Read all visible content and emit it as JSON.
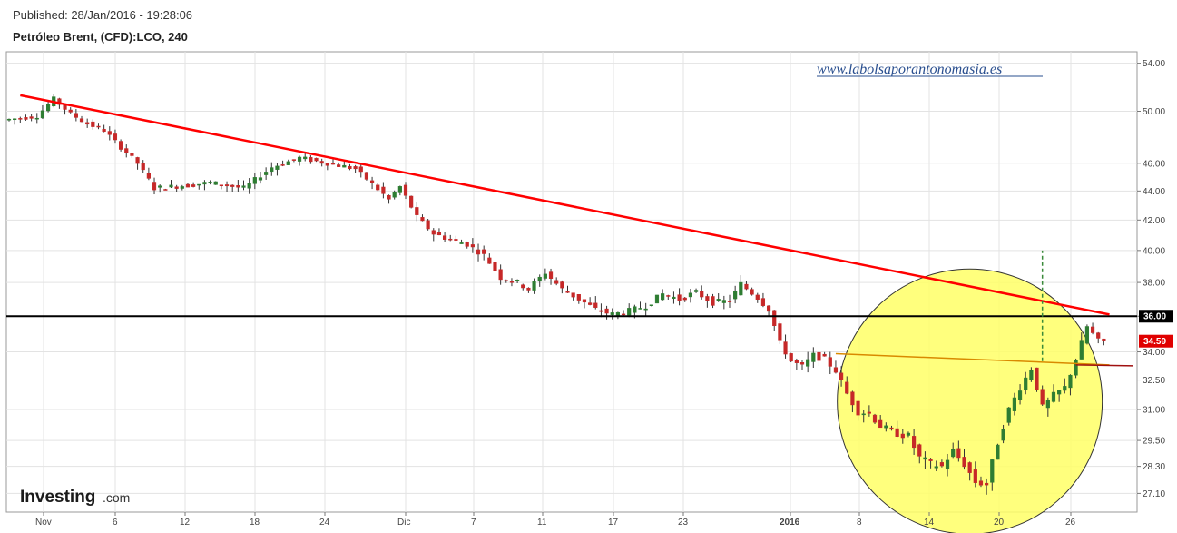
{
  "header": {
    "published": "Published: 28/Jan/2016 - 19:28:06",
    "instrument": "Petróleo Brent, (CFD):LCO, 240"
  },
  "watermark": "www.labolsaporantonomasia.es",
  "logo": {
    "main": "Investing",
    "suffix": ".com"
  },
  "colors": {
    "up_candle": "#2e7d32",
    "down_candle": "#c62828",
    "trendline": "#ff0000",
    "support_line": "#000000",
    "neckline": "#d98a00",
    "target_line": "#3a8a3a",
    "highlight_circle": "#ffff66",
    "current_price_label": "#e00000",
    "level_label": "#000000"
  },
  "chart_data": {
    "type": "candlestick",
    "title": "Petróleo Brent, (CFD):LCO, 240",
    "x_ticks": [
      "Nov",
      "6",
      "12",
      "18",
      "24",
      "Dic",
      "7",
      "11",
      "17",
      "23",
      "2016",
      "8",
      "14",
      "20",
      "26"
    ],
    "y_ticks": [
      "54.00",
      "50.00",
      "46.00",
      "44.00",
      "42.00",
      "40.00",
      "38.00",
      "36.00",
      "34.00",
      "32.50",
      "31.00",
      "29.50",
      "28.30",
      "27.10"
    ],
    "y_axis": "log",
    "ylim": [
      26.3,
      55.0
    ],
    "grid": true,
    "price_path": [
      [
        0,
        49.3
      ],
      [
        6,
        49.6
      ],
      [
        9,
        51.0
      ],
      [
        12,
        49.8
      ],
      [
        15,
        49.0
      ],
      [
        18,
        48.5
      ],
      [
        21,
        47.2
      ],
      [
        24,
        46.0
      ],
      [
        27,
        44.2
      ],
      [
        33,
        44.4
      ],
      [
        37,
        44.6
      ],
      [
        43,
        44.2
      ],
      [
        48,
        45.7
      ],
      [
        53,
        46.4
      ],
      [
        58,
        46.0
      ],
      [
        63,
        45.6
      ],
      [
        66,
        44.5
      ],
      [
        69,
        43.4
      ],
      [
        71,
        44.3
      ],
      [
        74,
        42.2
      ],
      [
        77,
        41.1
      ],
      [
        80,
        40.7
      ],
      [
        83,
        40.4
      ],
      [
        86,
        39.7
      ],
      [
        89,
        38.3
      ],
      [
        92,
        38.0
      ],
      [
        94,
        37.6
      ],
      [
        97,
        38.6
      ],
      [
        100,
        37.6
      ],
      [
        103,
        37.0
      ],
      [
        106,
        36.4
      ],
      [
        109,
        36.1
      ],
      [
        112,
        36.3
      ],
      [
        115,
        36.6
      ],
      [
        118,
        37.3
      ],
      [
        121,
        37.0
      ],
      [
        124,
        37.4
      ],
      [
        127,
        36.8
      ],
      [
        130,
        36.9
      ],
      [
        132,
        37.9
      ],
      [
        135,
        37.1
      ],
      [
        137,
        36.4
      ],
      [
        139,
        34.5
      ],
      [
        141,
        33.5
      ],
      [
        143,
        33.2
      ],
      [
        145,
        33.8
      ],
      [
        147,
        33.6
      ],
      [
        149,
        33.0
      ],
      [
        151,
        31.8
      ],
      [
        153,
        30.9
      ],
      [
        155,
        30.8
      ],
      [
        157,
        30.2
      ],
      [
        159,
        29.9
      ],
      [
        162,
        29.7
      ],
      [
        164,
        28.7
      ],
      [
        166,
        28.4
      ],
      [
        168,
        28.3
      ],
      [
        170,
        29.0
      ],
      [
        172,
        28.4
      ],
      [
        174,
        27.6
      ],
      [
        176,
        27.5
      ],
      [
        178,
        29.4
      ],
      [
        180,
        31.0
      ],
      [
        182,
        32.1
      ],
      [
        184,
        33.1
      ],
      [
        186,
        31.1
      ],
      [
        188,
        31.7
      ],
      [
        190,
        32.1
      ],
      [
        192,
        33.6
      ],
      [
        194,
        35.4
      ],
      [
        196,
        34.6
      ]
    ],
    "levels": [
      {
        "name": "resistance",
        "value": 36.0,
        "label": "36.00"
      },
      {
        "name": "last",
        "value": 34.59,
        "label": "34.59"
      }
    ],
    "annotations": {
      "trendline": {
        "start": [
          2,
          51.3
        ],
        "end": [
          197,
          36.1
        ]
      },
      "neckline": {
        "start": [
          148,
          33.9
        ],
        "end": [
          197,
          33.3
        ]
      },
      "target": {
        "x": 185,
        "from": 33.5,
        "to": 40.0
      },
      "highlight_circle": {
        "center": [
          172,
          31.4
        ]
      }
    }
  }
}
